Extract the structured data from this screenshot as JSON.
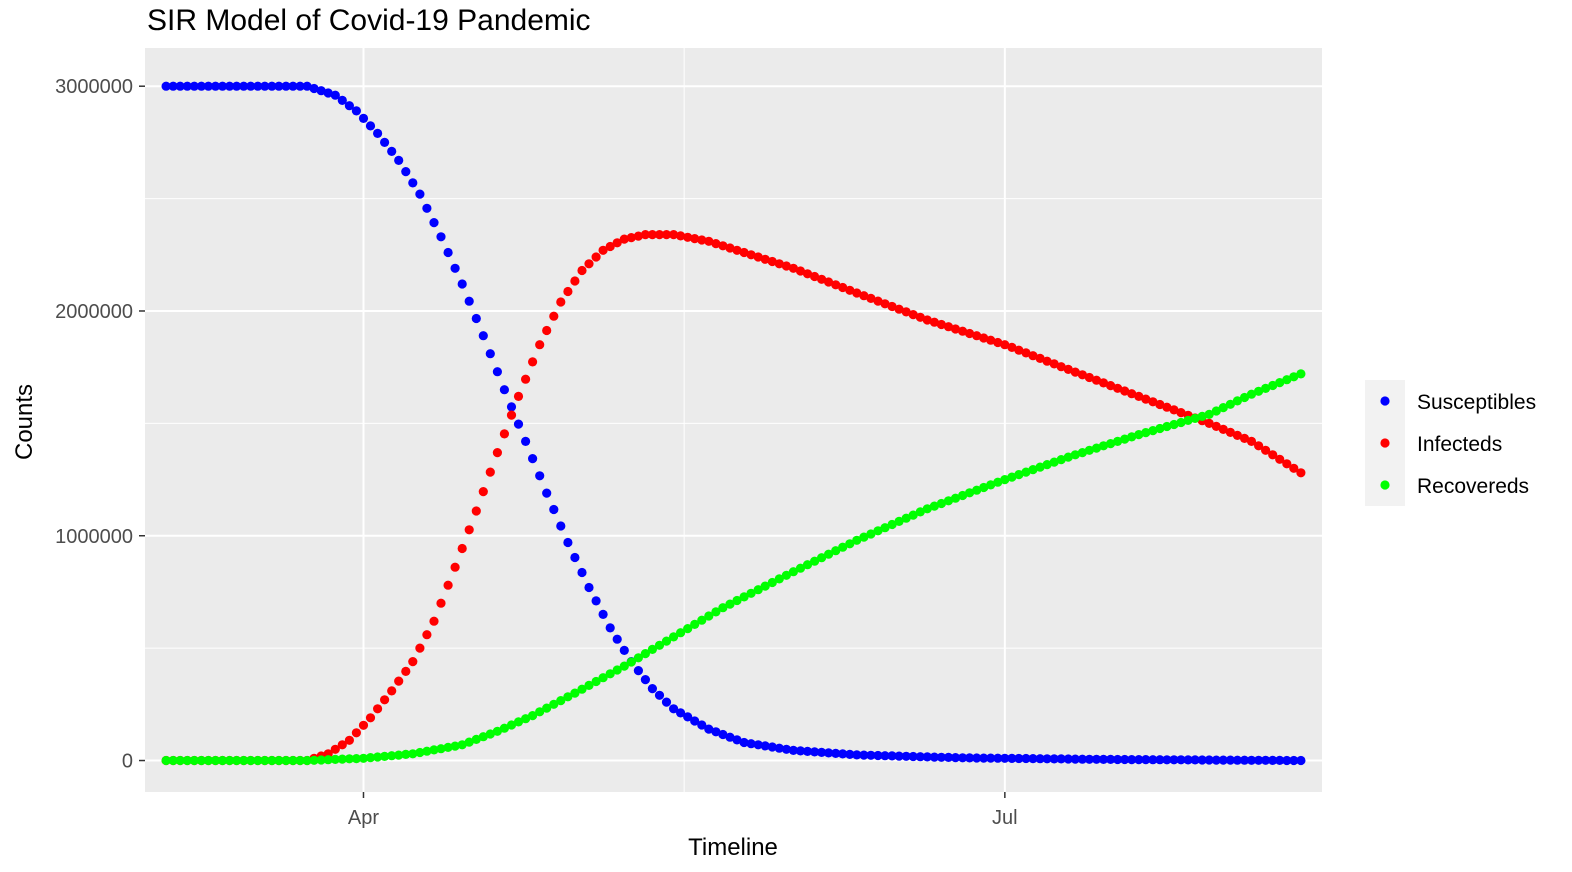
{
  "chart_data": {
    "type": "scatter",
    "title": "SIR Model of Covid-19 Pandemic",
    "xlabel": "Timeline",
    "ylabel": "Counts",
    "x_range": [
      "2020-03-01",
      "2020-08-15"
    ],
    "x_ticks": [
      {
        "date": "2020-04-01",
        "label": "Apr"
      },
      {
        "date": "2020-07-01",
        "label": "Jul"
      }
    ],
    "y_range": [
      -140000,
      3170000
    ],
    "y_ticks": [
      0,
      1000000,
      2000000,
      3000000
    ],
    "y_tick_labels": [
      "0",
      "1000000",
      "2000000",
      "3000000"
    ],
    "background": "#ebebeb",
    "grid": true,
    "legend_position": "right",
    "series": [
      {
        "name": "Susceptibles",
        "color": "#0000ff",
        "points": [
          [
            "2020-03-04",
            3000000
          ],
          [
            "2020-03-24",
            3000000
          ],
          [
            "2020-03-28",
            2960000
          ],
          [
            "2020-03-31",
            2890000
          ],
          [
            "2020-04-03",
            2790000
          ],
          [
            "2020-04-06",
            2670000
          ],
          [
            "2020-04-09",
            2520000
          ],
          [
            "2020-04-12",
            2330000
          ],
          [
            "2020-04-15",
            2120000
          ],
          [
            "2020-04-18",
            1890000
          ],
          [
            "2020-04-21",
            1650000
          ],
          [
            "2020-04-24",
            1420000
          ],
          [
            "2020-04-27",
            1190000
          ],
          [
            "2020-04-30",
            970000
          ],
          [
            "2020-05-03",
            770000
          ],
          [
            "2020-05-06",
            590000
          ],
          [
            "2020-05-09",
            440000
          ],
          [
            "2020-05-12",
            320000
          ],
          [
            "2020-05-15",
            230000
          ],
          [
            "2020-05-20",
            140000
          ],
          [
            "2020-05-25",
            80000
          ],
          [
            "2020-06-01",
            45000
          ],
          [
            "2020-06-10",
            25000
          ],
          [
            "2020-06-25",
            12000
          ],
          [
            "2020-07-15",
            5000
          ],
          [
            "2020-08-12",
            0
          ]
        ]
      },
      {
        "name": "Infecteds",
        "color": "#ff0000",
        "points": [
          [
            "2020-03-04",
            0
          ],
          [
            "2020-03-24",
            0
          ],
          [
            "2020-03-27",
            30000
          ],
          [
            "2020-03-30",
            90000
          ],
          [
            "2020-04-02",
            190000
          ],
          [
            "2020-04-05",
            310000
          ],
          [
            "2020-04-08",
            440000
          ],
          [
            "2020-04-11",
            620000
          ],
          [
            "2020-04-14",
            860000
          ],
          [
            "2020-04-17",
            1110000
          ],
          [
            "2020-04-20",
            1370000
          ],
          [
            "2020-04-23",
            1620000
          ],
          [
            "2020-04-26",
            1850000
          ],
          [
            "2020-04-29",
            2040000
          ],
          [
            "2020-05-02",
            2180000
          ],
          [
            "2020-05-05",
            2270000
          ],
          [
            "2020-05-08",
            2320000
          ],
          [
            "2020-05-11",
            2340000
          ],
          [
            "2020-05-15",
            2340000
          ],
          [
            "2020-05-20",
            2310000
          ],
          [
            "2020-05-25",
            2260000
          ],
          [
            "2020-06-01",
            2190000
          ],
          [
            "2020-06-10",
            2080000
          ],
          [
            "2020-06-20",
            1960000
          ],
          [
            "2020-07-01",
            1850000
          ],
          [
            "2020-07-10",
            1740000
          ],
          [
            "2020-07-20",
            1620000
          ],
          [
            "2020-07-30",
            1500000
          ],
          [
            "2020-08-05",
            1420000
          ],
          [
            "2020-08-12",
            1280000
          ]
        ]
      },
      {
        "name": "Recovereds",
        "color": "#00ff00",
        "points": [
          [
            "2020-03-04",
            0
          ],
          [
            "2020-03-24",
            0
          ],
          [
            "2020-04-01",
            10000
          ],
          [
            "2020-04-08",
            30000
          ],
          [
            "2020-04-15",
            70000
          ],
          [
            "2020-04-20",
            130000
          ],
          [
            "2020-04-25",
            200000
          ],
          [
            "2020-05-01",
            300000
          ],
          [
            "2020-05-08",
            420000
          ],
          [
            "2020-05-15",
            550000
          ],
          [
            "2020-05-22",
            680000
          ],
          [
            "2020-06-01",
            840000
          ],
          [
            "2020-06-10",
            980000
          ],
          [
            "2020-06-20",
            1120000
          ],
          [
            "2020-07-01",
            1250000
          ],
          [
            "2020-07-10",
            1350000
          ],
          [
            "2020-07-20",
            1450000
          ],
          [
            "2020-07-30",
            1540000
          ],
          [
            "2020-08-05",
            1630000
          ],
          [
            "2020-08-12",
            1720000
          ]
        ]
      }
    ]
  }
}
